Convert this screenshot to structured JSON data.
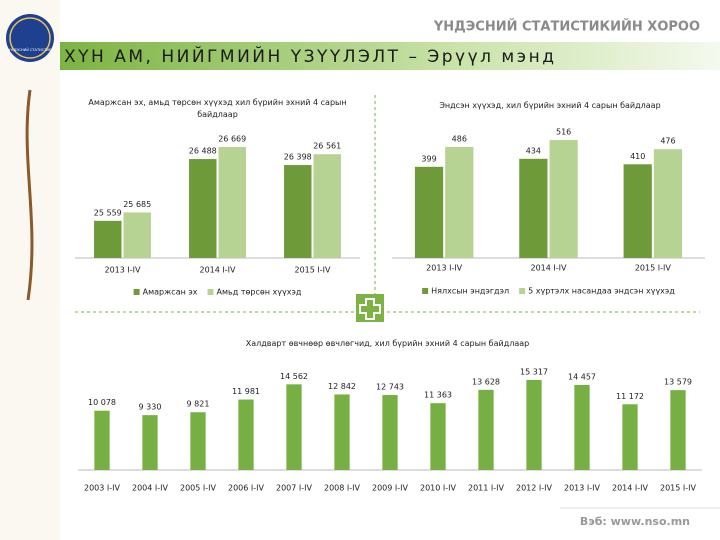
{
  "header": {
    "org": "ҮНДЭСНИЙ СТАТИСТИКИЙН ХОРОО",
    "title": "ХҮН АМ, НИЙГМИЙН ҮЗҮҮЛЭЛТ – Эрүүл мэнд",
    "logo_text": "ҮНДЭСНИЙ СТАТИСТИК"
  },
  "footer": "Вэб: www.nso.mn",
  "chart_data": [
    {
      "type": "bar",
      "title": "Амаржсан эх, амьд төрсөн хүүхэд хил бүрийн эхний 4 сарын байдлаар",
      "categories": [
        "2013 I-IV",
        "2014 I-IV",
        "2015 I-IV"
      ],
      "series": [
        {
          "name": "Амаржсан эх",
          "color": "#6f9a3a",
          "values": [
            25559,
            26488,
            26398
          ],
          "value_labels": [
            "25 559",
            "26 488",
            "26 398"
          ]
        },
        {
          "name": "Амьд төрсөн хүүхэд",
          "color": "#b7d393",
          "values": [
            25685,
            26669,
            26561
          ],
          "value_labels": [
            "25 685",
            "26 669",
            "26 561"
          ]
        }
      ],
      "ylim": [
        25000,
        27000
      ]
    },
    {
      "type": "bar",
      "title": "Эндсэн хүүхэд, хил бүрийн эхний 4 сарын байдлаар",
      "categories": [
        "2013 I-IV",
        "2014 I-IV",
        "2015 I-IV"
      ],
      "series": [
        {
          "name": "Нялхсын эндэгдэл",
          "color": "#6f9a3a",
          "values": [
            399,
            434,
            410
          ]
        },
        {
          "name": "5 хүртэлх насандаа эндсэн хүүхэд",
          "color": "#b7d393",
          "values": [
            486,
            516,
            476
          ]
        }
      ],
      "ylim": [
        0,
        560
      ]
    },
    {
      "type": "bar",
      "title": "Халдварт өвчнөөр өвчлөгчид, хил бүрийн эхний 4 сарын байдлаар",
      "categories": [
        "2003 I-IV",
        "2004 I-IV",
        "2005 I-IV",
        "2006 I-IV",
        "2007 I-IV",
        "2008 I-IV",
        "2009 I-IV",
        "2010 I-IV",
        "2011 I-IV",
        "2012 I-IV",
        "2013 I-IV",
        "2014 I-IV",
        "2015 I-IV"
      ],
      "series": [
        {
          "name": null,
          "color": "#76b043",
          "values": [
            10078,
            9330,
            9821,
            11981,
            14562,
            12842,
            12743,
            11363,
            13628,
            15317,
            14457,
            11172,
            13579
          ],
          "value_labels": [
            "10 078",
            "9 330",
            "9 821",
            "11 981",
            "14 562",
            "12 842",
            "12 743",
            "11 363",
            "13 628",
            "15 317",
            "14 457",
            "11 172",
            "13 579"
          ]
        }
      ],
      "ylim": [
        0,
        17000
      ]
    }
  ]
}
